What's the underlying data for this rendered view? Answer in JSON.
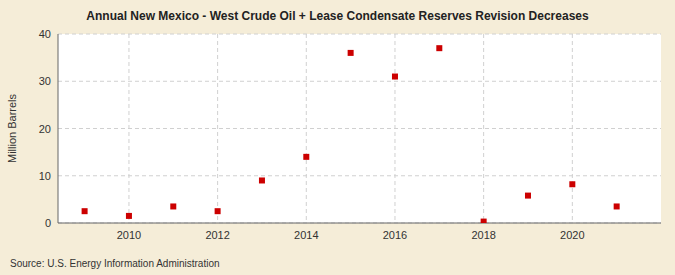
{
  "chart_data": {
    "type": "scatter",
    "title": "Annual New Mexico - West Crude Oil + Lease Condensate Reserves Revision Decreases",
    "y_label": "Million Barrels",
    "source": "Source: U.S. Energy Information Administration",
    "x": [
      2009,
      2010,
      2011,
      2012,
      2013,
      2014,
      2015,
      2016,
      2017,
      2018,
      2019,
      2020,
      2021
    ],
    "values": [
      2.5,
      1.5,
      3.5,
      2.5,
      9.0,
      14.0,
      36.0,
      31.0,
      37.0,
      0.3,
      5.8,
      8.2,
      3.5
    ],
    "color": "#cc0000",
    "marker": "square",
    "xlim": [
      2008.4,
      2022.0
    ],
    "xticks": [
      2010,
      2012,
      2014,
      2016,
      2018,
      2020
    ],
    "ylim": [
      0,
      40
    ],
    "yticks": [
      0,
      10,
      20,
      30,
      40
    ],
    "grid": true
  }
}
